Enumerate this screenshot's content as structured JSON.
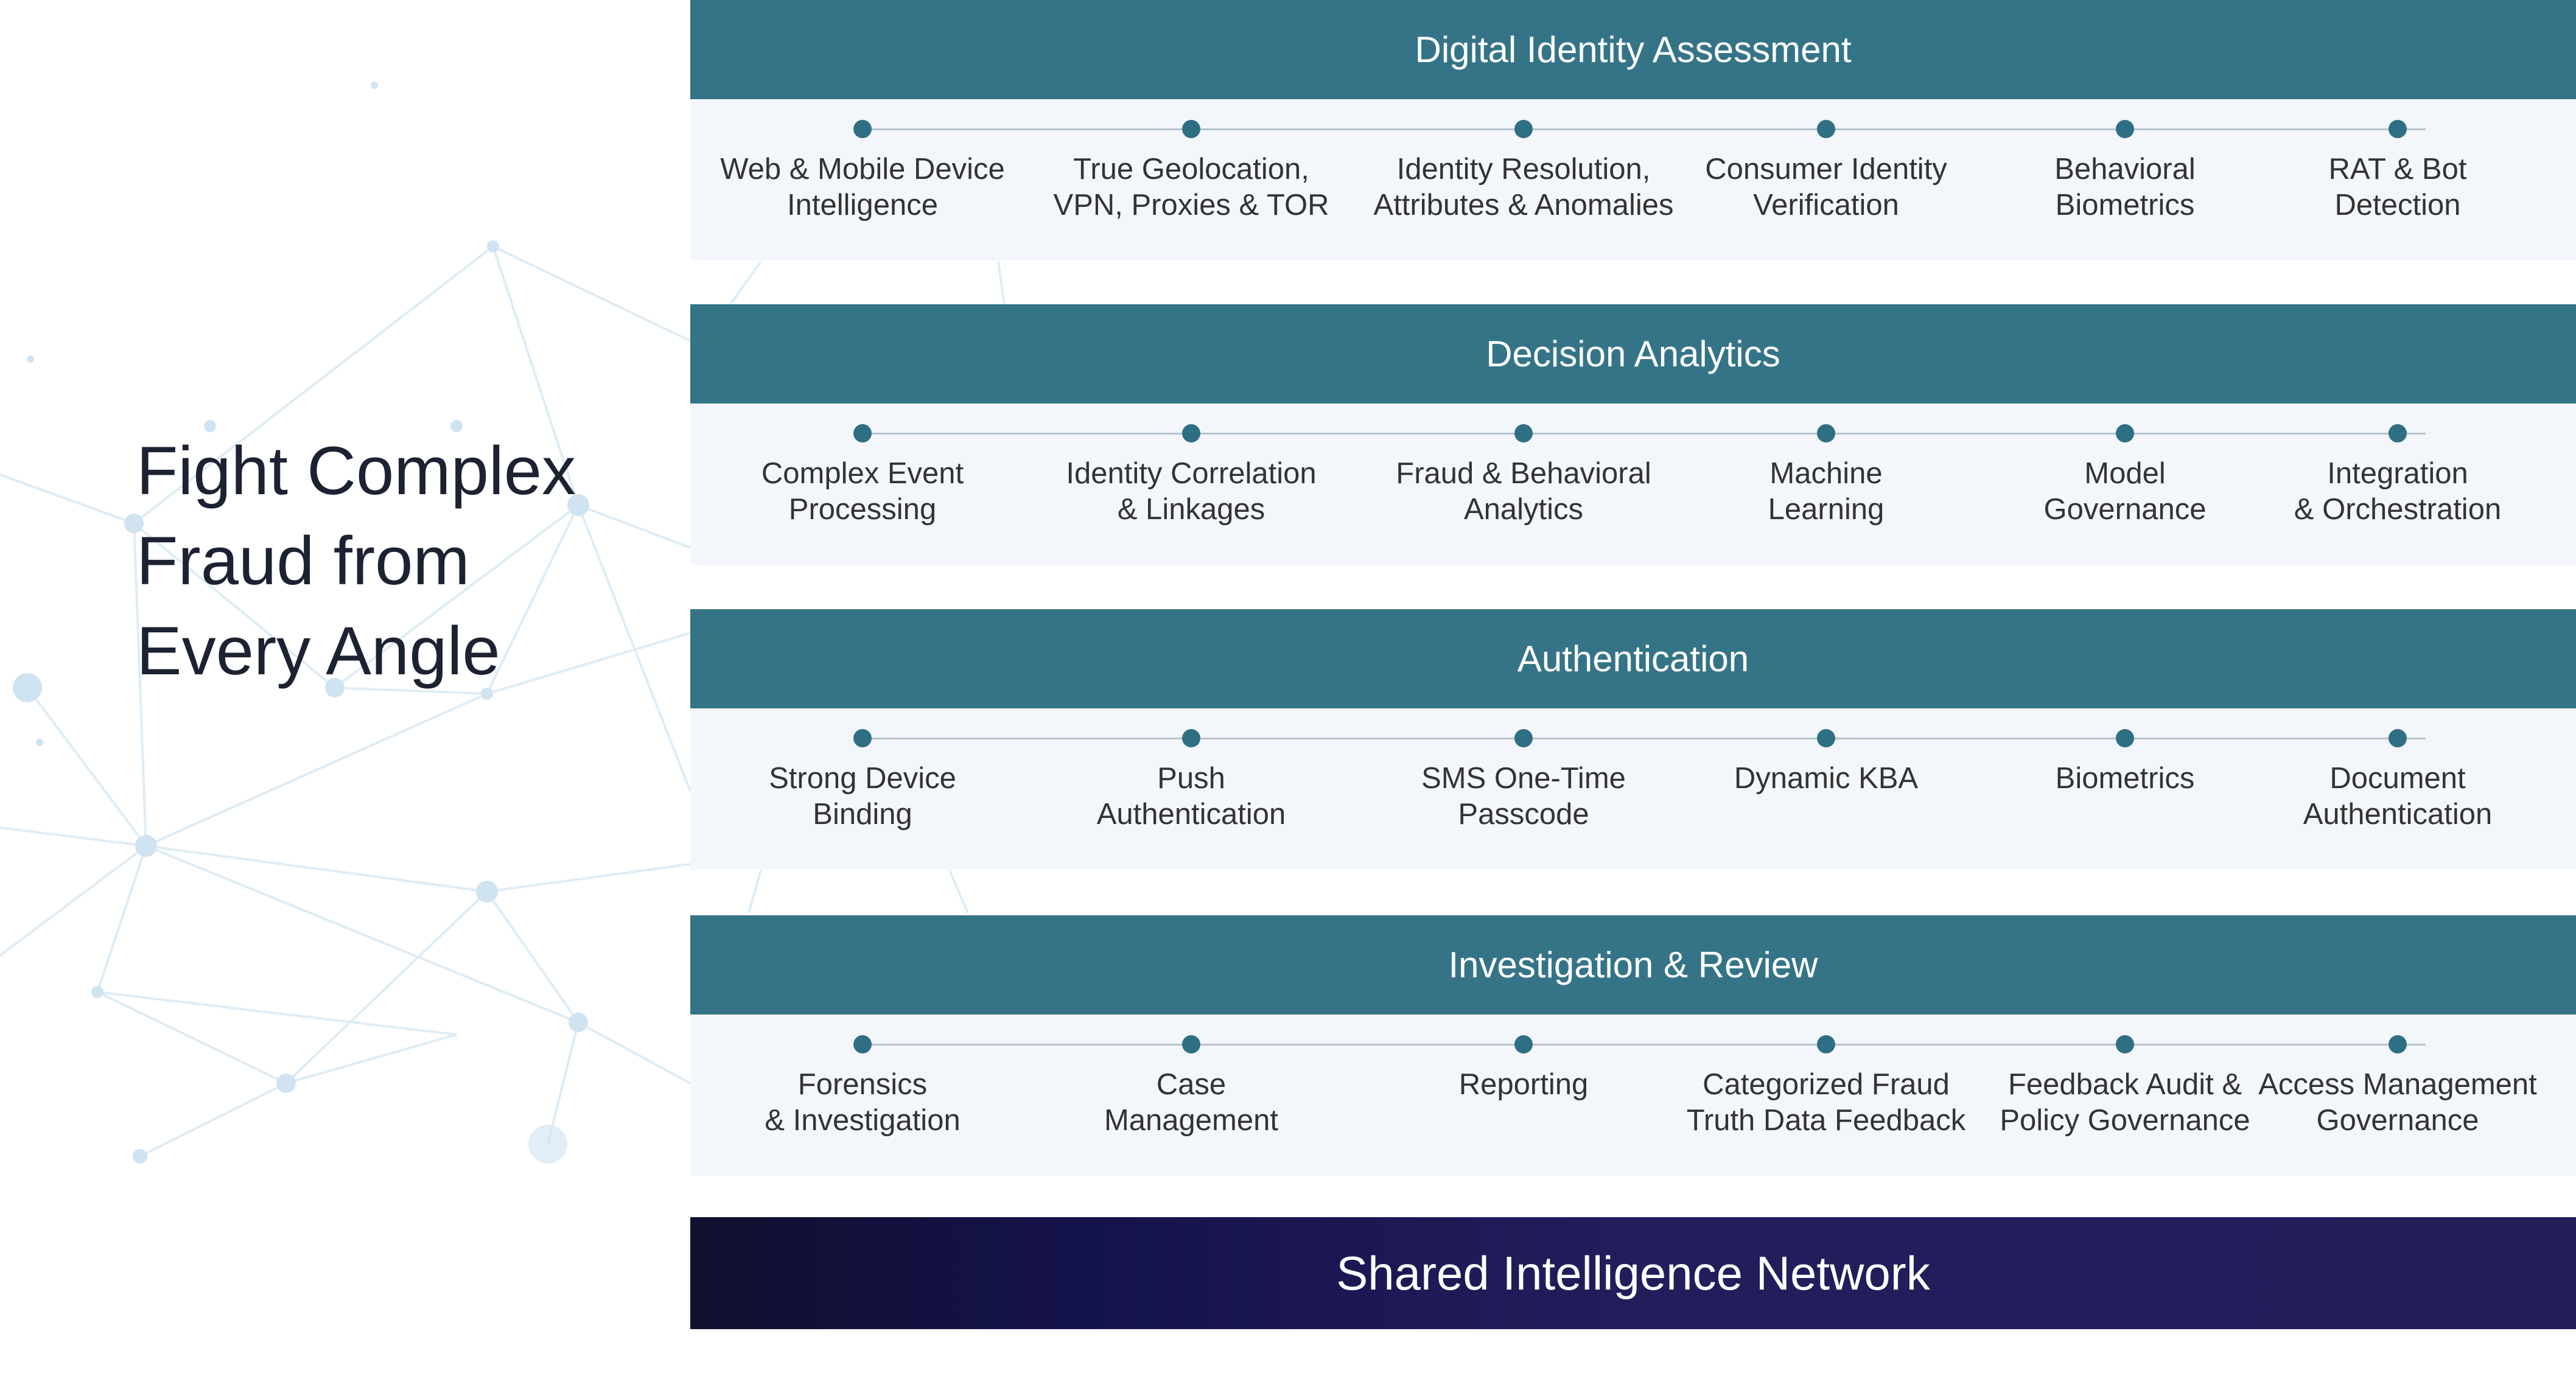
{
  "headline": [
    "Fight Complex",
    "Fraud from",
    "Every Angle"
  ],
  "colors": {
    "section_header": "#357487",
    "dot": "#2f6f83",
    "section_body": "#f3f6fa",
    "bottom_bar": "#221e5c"
  },
  "sections": [
    {
      "title": "Digital Identity Assessment",
      "items": [
        "Web & Mobile Device\nIntelligence",
        "True Geolocation,\nVPN, Proxies & TOR",
        "Identity Resolution,\nAttributes & Anomalies",
        "Consumer Identity\nVerification",
        "Behavioral\nBiometrics",
        "RAT & Bot\nDetection"
      ]
    },
    {
      "title": "Decision Analytics",
      "items": [
        "Complex Event\nProcessing",
        "Identity Correlation\n& Linkages",
        "Fraud & Behavioral\nAnalytics",
        "Machine\nLearning",
        "Model\nGovernance",
        "Integration\n& Orchestration"
      ]
    },
    {
      "title": "Authentication",
      "items": [
        "Strong Device\nBinding",
        "Push\nAuthentication",
        "SMS One-Time\nPasscode",
        "Dynamic KBA",
        "Biometrics",
        "Document\nAuthentication"
      ]
    },
    {
      "title": "Investigation & Review",
      "items": [
        "Forensics\n& Investigation",
        "Case\nManagement",
        "Reporting",
        "Categorized Fraud\nTruth Data Feedback",
        "Feedback Audit &\nPolicy Governance",
        "Access Management\nGovernance"
      ]
    }
  ],
  "bottom_bar": "Shared Intelligence Network"
}
